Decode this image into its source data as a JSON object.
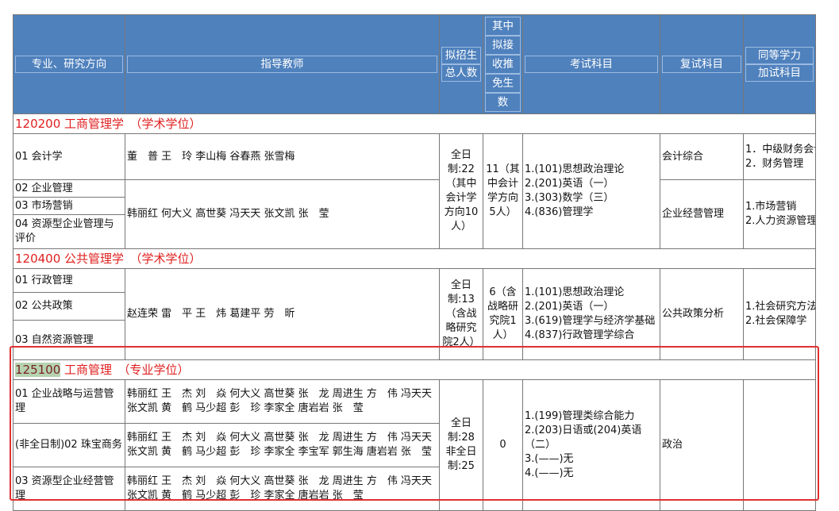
{
  "headers": [
    "专业、研究方向",
    "指导教师",
    "拟招生总人数",
    "其中拟接收推免生数",
    "考试科目",
    "复试科目",
    "同等学力加试科目"
  ],
  "header_parts": {
    "c3": [
      "拟招生",
      "总人数"
    ],
    "c4": [
      "其中",
      "拟接",
      "收推",
      "免生",
      "数"
    ],
    "c7": [
      "同等学力",
      "加试科目"
    ]
  },
  "sections": [
    {
      "code": "120200",
      "title": "工商管理学　（学术学位）",
      "rows": [
        {
          "dir": "01 会计学",
          "teachers": "董　普 王　玲 李山梅 谷春燕 张雪梅"
        },
        {
          "dir": "02 企业管理"
        },
        {
          "dir": "03 市场营销"
        },
        {
          "dir": "04 资源型企业管理与评价"
        }
      ],
      "teachers2": "韩丽红 何大义 高世葵 冯天天 张文凯 张　莹",
      "total": "全日制:22（其中会计学方向10人）",
      "exempt": "11（其中会计学方向5人）",
      "exam": [
        "1.(101)思想政治理论",
        "2.(201)英语（一）",
        "3.(303)数学（三）",
        "4.(836)管理学"
      ],
      "retest": [
        "会计综合",
        "企业经营管理"
      ],
      "extra": [
        "1．中级财务会计\n2．财务管理",
        "1.市场营销\n2.人力资源管理"
      ]
    },
    {
      "code": "120400",
      "title": "公共管理学　（学术学位）",
      "rows": [
        {
          "dir": "01 行政管理"
        },
        {
          "dir": "02 公共政策"
        },
        {
          "dir": "03 自然资源管理"
        }
      ],
      "teachers": "赵连荣 雷　平 王　炜 葛建平 劳　昕",
      "total": "全日制:13（含战略研究院2人）",
      "exempt": "6（含战略研究院1人）",
      "exam": [
        "1.(101)思想政治理论",
        "2.(201)英语（一）",
        "3.(619)管理学与经济学基础",
        "4.(837)行政管理学综合"
      ],
      "retest": "公共政策分析",
      "extra": "1.社会研究方法\n2.社会保障学"
    },
    {
      "code": "125100",
      "title": "工商管理　（专业学位）",
      "rows": [
        {
          "dir": "01 企业战略与运营管理",
          "teachers": "韩丽红 王　杰 刘　焱 何大义 高世葵 张　龙 周进生 方　伟 冯天天 张文凯 黄　鹤 马少超 彭　珍 李家全 唐岩岩 张　莹"
        },
        {
          "dir": "(非全日制)02 珠宝商务",
          "teachers": "韩丽红 王　杰 刘　焱 何大义 高世葵 张　龙 周进生 方　伟 冯天天 张文凯 黄　鹤 马少超 彭　珍 李家全 李宝军 郭生海 唐岩岩 张　莹"
        },
        {
          "dir": "03 资源型企业经营管理",
          "teachers": "韩丽红 王　杰 刘　焱 何大义 高世葵 张　龙 周进生 方　伟 冯天天 张文凯 黄　鹤 马少超 彭　珍 李家全 唐岩岩 张　莹"
        }
      ],
      "total": "全日制:28 非全日制:25",
      "exempt": "0",
      "exam": [
        "1.(199)管理类综合能力",
        "2.(203)日语或(204)英语（二）",
        "3.(——)无",
        "4.(——)无"
      ],
      "retest": "政治",
      "extra": ""
    }
  ],
  "colors": {
    "header_bg": "#4f81bd",
    "section_text": "#e02020",
    "highlight_box": "#e03030"
  }
}
